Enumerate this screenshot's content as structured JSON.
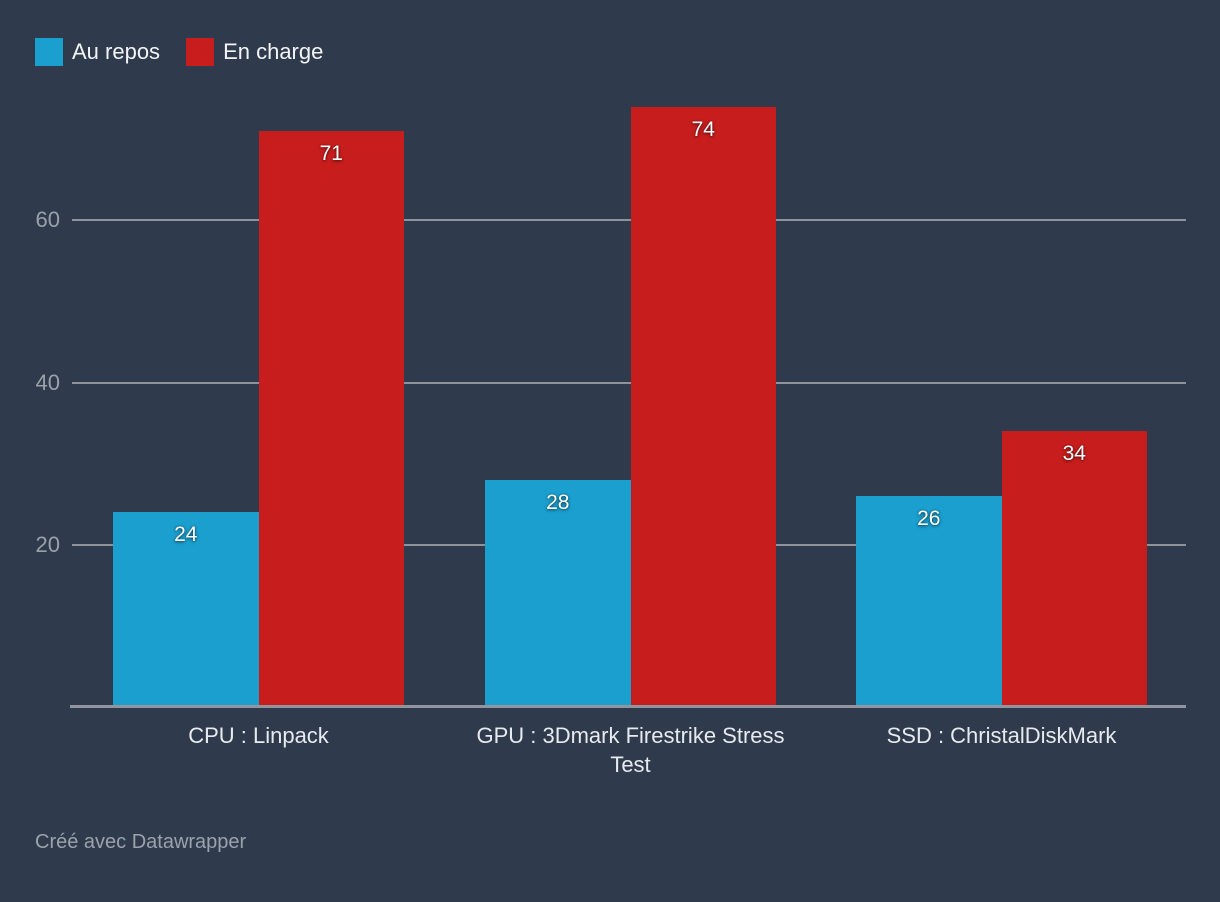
{
  "chart_data": {
    "type": "bar",
    "title": "",
    "categories": [
      "CPU : Linpack",
      "GPU : 3Dmark Firestrike Stress Test",
      "SSD : ChristalDiskMark"
    ],
    "series": [
      {
        "name": "Au repos",
        "color": "#1b9fce",
        "values": [
          24,
          28,
          26
        ]
      },
      {
        "name": "En charge",
        "color": "#c71e1d",
        "values": [
          71,
          74,
          34
        ]
      }
    ],
    "y_ticks": [
      20,
      40,
      60
    ],
    "ylim": [
      0,
      79
    ],
    "grid": "horizontal",
    "legend_position": "top-left",
    "value_labels": "inside-top"
  },
  "footer": {
    "credit_label": "Créé avec Datawrapper"
  },
  "colors": {
    "background": "#2f3b4c",
    "gridline": "#8d929b",
    "axis_line": "#90959d",
    "tick_label": "#9aa1a9",
    "category_label": "#e7eaee",
    "value_label": "#ffffff",
    "footer_text": "#9ba2ac",
    "series_blue": "#1b9fce",
    "series_red": "#c71e1d"
  }
}
